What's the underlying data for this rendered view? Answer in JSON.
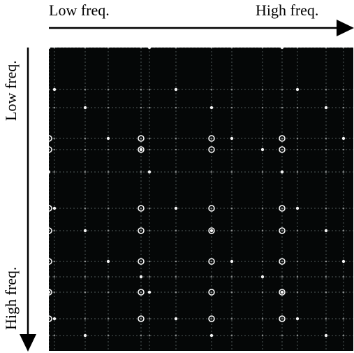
{
  "x_axis": {
    "low_label": "Low freq.",
    "high_label": "High freq."
  },
  "y_axis": {
    "low_label": "Low freq.",
    "high_label": "High freq."
  },
  "colors": {
    "background": "#050707",
    "peak": "#ffffff",
    "grid": "#2a3030",
    "arrow": "#000000"
  }
}
